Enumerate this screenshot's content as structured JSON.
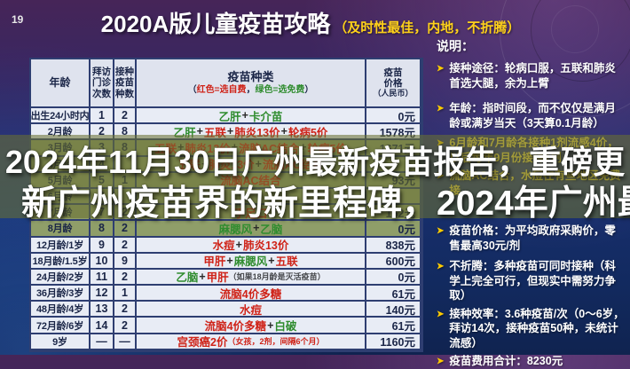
{
  "page": {
    "corner_number": "19"
  },
  "title": {
    "main": "2020A版儿童疫苗攻略",
    "sub": "（及时性最佳，内地，不折腾）"
  },
  "overlay": {
    "line1": "2024年11月30日广州最新疫苗报告，重磅更",
    "line2": "新广州疫苗界的新里程碑，2024年广州最新疫"
  },
  "table": {
    "headers": {
      "age": "年龄",
      "visits": [
        "拜访",
        "门诊",
        "次数"
      ],
      "count": [
        "接种",
        "疫苗",
        "种数"
      ],
      "vaccines_title": "疫苗种类",
      "vaccines_legend": [
        {
          "t": "（",
          "c": "dark"
        },
        {
          "t": "红色=选自费",
          "c": "red"
        },
        {
          "t": "，",
          "c": "dark"
        },
        {
          "t": "绿色=选免费",
          "c": "green"
        },
        {
          "t": "）",
          "c": "dark"
        }
      ],
      "price": [
        "疫苗",
        "价格",
        "（人民币）"
      ]
    },
    "rows": [
      {
        "age": "出生24小时内",
        "visits": "1",
        "count": "2",
        "vaccines": [
          {
            "t": "乙肝",
            "c": "green"
          },
          {
            "t": "卡介苗",
            "c": "green"
          }
        ],
        "price": "0元",
        "highlight": false
      },
      {
        "age": "2月龄",
        "visits": "2",
        "count": "8",
        "vaccines": [
          {
            "t": "乙肝",
            "c": "green"
          },
          {
            "t": "五联",
            "c": "red"
          },
          {
            "t": "肺炎13价",
            "c": "red"
          },
          {
            "t": "轮病5价",
            "c": "red"
          }
        ],
        "price": "1578元",
        "highlight": false
      },
      {
        "age": "3月龄",
        "visits": "3",
        "count": "8",
        "vaccines": [
          {
            "t": "五联",
            "c": "red"
          },
          {
            "t": "肺炎13价",
            "c": "red"
          },
          {
            "t": "流脑AC结合",
            "c": "red"
          },
          {
            "t": "轮病5价",
            "c": "red"
          }
        ],
        "price": "1671元",
        "highlight": true
      },
      {
        "age": "4月龄",
        "visits": "4",
        "count": "",
        "vaccines": [
          {
            "t": "五联",
            "c": "red"
          },
          {
            "t": "肺炎13价",
            "c": "red"
          },
          {
            "t": "流脑AC结合",
            "c": "red"
          }
        ],
        "price": "",
        "highlight": true
      },
      {
        "age": "5月龄",
        "visits": "5",
        "count": "1",
        "vaccines": [
          {
            "t": "流脑AC结合",
            "c": "red"
          }
        ],
        "price": "93元",
        "highlight": true
      },
      {
        "age": "6月龄",
        "visits": "6",
        "count": "",
        "vaccines": [],
        "price": "",
        "highlight": true
      },
      {
        "age": "7月龄",
        "visits": "7",
        "count": "2",
        "vaccines": [
          {
            "t": "手足口",
            "c": "red"
          }
        ],
        "price": "162元",
        "highlight": true
      },
      {
        "age": "8月龄",
        "visits": "8",
        "count": "2",
        "vaccines": [
          {
            "t": "麻腮风",
            "c": "green"
          },
          {
            "t": "乙脑",
            "c": "green"
          }
        ],
        "price": "0元",
        "highlight": true
      },
      {
        "age": "12月龄/1岁",
        "visits": "9",
        "count": "2",
        "vaccines": [
          {
            "t": "水痘",
            "c": "red"
          },
          {
            "t": "肺炎13价",
            "c": "red"
          }
        ],
        "price": "838元",
        "highlight": false
      },
      {
        "age": "18月龄/1.5岁",
        "visits": "10",
        "count": "9",
        "vaccines": [
          {
            "t": "甲肝",
            "c": "red"
          },
          {
            "t": "麻腮风",
            "c": "green"
          },
          {
            "t": "五联",
            "c": "red"
          }
        ],
        "price": "600元",
        "highlight": false
      },
      {
        "age": "24月龄/2岁",
        "visits": "11",
        "count": "2",
        "vaccines": [
          {
            "t": "乙脑",
            "c": "green"
          },
          {
            "t": "甲肝",
            "c": "red"
          },
          {
            "t": "（如果18月龄是灭活疫苗）",
            "c": "note"
          }
        ],
        "price": "0元",
        "highlight": false
      },
      {
        "age": "36月龄/3岁",
        "visits": "12",
        "count": "1",
        "vaccines": [
          {
            "t": "流脑4价多糖",
            "c": "red"
          }
        ],
        "price": "61元",
        "highlight": false
      },
      {
        "age": "48月龄/4岁",
        "visits": "13",
        "count": "2",
        "vaccines": [
          {
            "t": "水痘",
            "c": "red"
          }
        ],
        "price": "140元",
        "highlight": false
      },
      {
        "age": "72月龄/6岁",
        "visits": "14",
        "count": "2",
        "vaccines": [
          {
            "t": "流脑4价多糖",
            "c": "red"
          },
          {
            "t": "白破",
            "c": "green"
          }
        ],
        "price": "61元",
        "highlight": false
      },
      {
        "age": "9岁",
        "visits": "—",
        "count": "—",
        "vaccines": [
          {
            "t": "宫颈癌2价",
            "c": "red"
          },
          {
            "t": "（女孩，2剂，间隔6个月）",
            "c": "note-red"
          }
        ],
        "price": "1160元",
        "highlight": false
      }
    ]
  },
  "sidebar": {
    "title": "说明：",
    "bullet": "➤",
    "items": [
      {
        "text": "接种途径：轮病口服，五联和肺炎首选大腿，余为上臂",
        "color": "white"
      },
      {
        "text": "年龄：指时间段，而不仅仅是满月龄或满岁当天（3天算0.1月龄）",
        "color": "white"
      },
      {
        "text": "6月龄和7月龄各接种1剂流感4价，以后每年9月份接种1剂",
        "color": "yellow"
      },
      {
        "text": "流脑AC结合，水痘在有些地区免费接",
        "color": "yellow"
      },
      {
        "text": "疫苗价格：为平均政府采购价，零售最高30元/剂",
        "color": "white"
      },
      {
        "text": "不折腾：多种疫苗可同时接种（科学上完全可行，但现实中需努力争取）",
        "color": "white"
      },
      {
        "text": "接种效率：3.6种疫苗/次（0～6岁，拜访14次，接种疫苗50种，未统计流感）",
        "color": "white"
      },
      {
        "text": "疫苗费用合计：8230元",
        "color": "white"
      }
    ]
  },
  "colors": {
    "self_paid_red": "#cf2318",
    "free_green": "#2f8c2e",
    "highlight_row_olive": "#8f9e69",
    "caption_band": "rgba(105,112,50,0.58)",
    "title_sub_yellow": "#ffd11a",
    "sidebar_yellow": "#f0d543",
    "bullet_yellow": "#ffcc00",
    "table_border_navy": "#2e3e71"
  }
}
